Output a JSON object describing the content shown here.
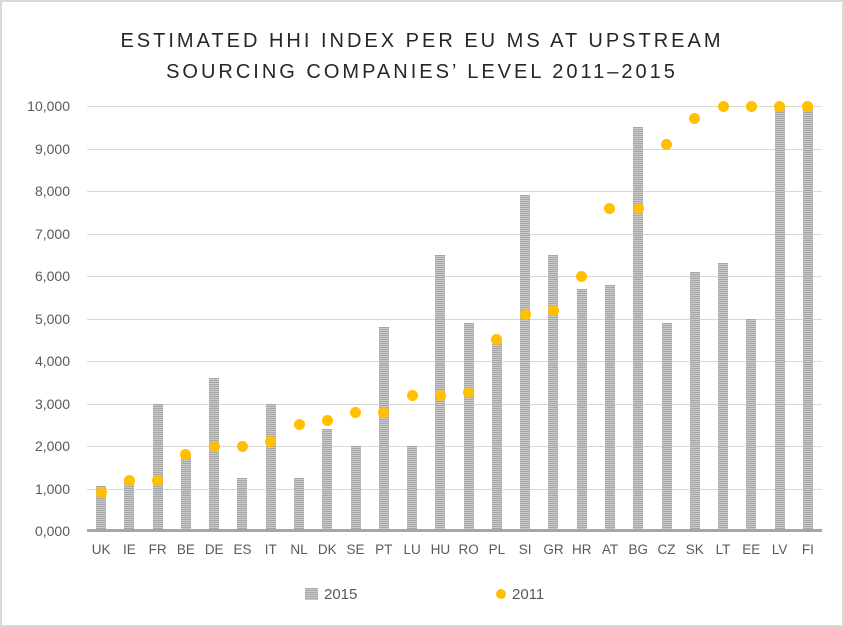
{
  "chart_data": {
    "type": "bar",
    "title": "ESTIMATED HHI INDEX PER EU MS AT UPSTREAM SOURCING COMPANIES’ LEVEL 2011–2015",
    "title_lines": [
      "ESTIMATED HHI INDEX PER EU MS AT UPSTREAM",
      "SOURCING COMPANIES’ LEVEL 2011–2015"
    ],
    "xlabel": "",
    "ylabel": "",
    "ylim": [
      0,
      10000
    ],
    "grid": true,
    "legend_position": "bottom",
    "categories": [
      "UK",
      "IE",
      "FR",
      "BE",
      "DE",
      "ES",
      "IT",
      "NL",
      "DK",
      "SE",
      "PT",
      "LU",
      "HU",
      "RO",
      "PL",
      "SI",
      "GR",
      "HR",
      "AT",
      "BG",
      "CZ",
      "SK",
      "LT",
      "EE",
      "LV",
      "FI"
    ],
    "series": [
      {
        "name": "2015",
        "type": "bar",
        "marker": "striped-bar",
        "values": [
          1050,
          1250,
          3000,
          1750,
          3600,
          1250,
          3000,
          1250,
          2400,
          2000,
          4800,
          2000,
          6500,
          4900,
          4450,
          7900,
          6500,
          5700,
          5800,
          9500,
          4900,
          6100,
          6300,
          5000,
          10000,
          10000
        ]
      },
      {
        "name": "2011",
        "type": "scatter",
        "marker": "circle",
        "values": [
          900,
          1200,
          1200,
          1800,
          2000,
          2000,
          2100,
          2500,
          2600,
          2800,
          2800,
          3200,
          3200,
          3250,
          4500,
          5100,
          5200,
          6000,
          7600,
          7600,
          9100,
          9700,
          10000,
          10000,
          10000,
          10000
        ]
      }
    ],
    "y_ticks": [
      {
        "value": 0,
        "label": "0,000"
      },
      {
        "value": 1000,
        "label": "1,000"
      },
      {
        "value": 2000,
        "label": "2,000"
      },
      {
        "value": 3000,
        "label": "3,000"
      },
      {
        "value": 4000,
        "label": "4,000"
      },
      {
        "value": 5000,
        "label": "5,000"
      },
      {
        "value": 6000,
        "label": "6,000"
      },
      {
        "value": 7000,
        "label": "7,000"
      },
      {
        "value": 8000,
        "label": "8,000"
      },
      {
        "value": 9000,
        "label": "9,000"
      },
      {
        "value": 10000,
        "label": "10,000"
      }
    ]
  },
  "colors": {
    "bar_fill": "#a6a6a6",
    "bar_stripe": "#c9c9c9",
    "dot_fill": "#ffc000",
    "gridline": "#d9d9d9",
    "axis_line": "#a6a6a6",
    "tick_text": "#595959",
    "title_text": "#262626"
  }
}
